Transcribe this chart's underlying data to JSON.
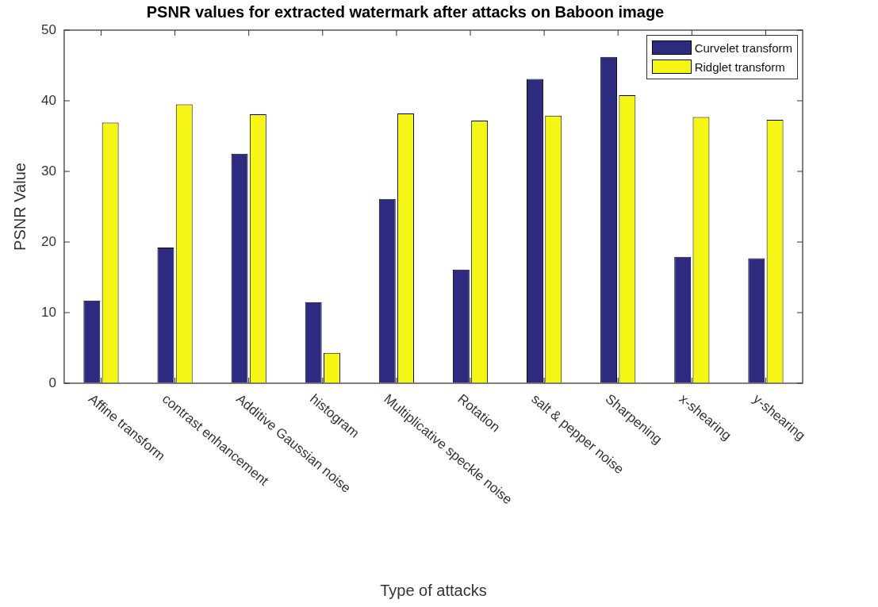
{
  "chart_data": {
    "type": "bar",
    "title": "PSNR values for extracted watermark after attacks on Baboon image",
    "xlabel": "Type of attacks",
    "ylabel": "PSNR Value",
    "categories": [
      "Affine transform",
      "contrast enhancement",
      "Additive Gaussian noise",
      "histogram",
      "Multiplicative speckle noise",
      "Rotation",
      "salt & pepper noise",
      "Sharpening",
      "x-shearing",
      "y-shearing"
    ],
    "series": [
      {
        "name": "Curvelet transform",
        "color": "#2e2a80",
        "values": [
          11.7,
          19.2,
          32.5,
          11.5,
          26.1,
          16.1,
          43.1,
          46.2,
          17.9,
          17.7
        ]
      },
      {
        "name": "Ridglet transform",
        "color": "#f5f516",
        "values": [
          36.9,
          39.5,
          38.1,
          4.3,
          38.2,
          37.2,
          37.9,
          40.8,
          37.7,
          37.3
        ]
      }
    ],
    "ylim": [
      0,
      50
    ],
    "yticks": [
      0,
      10,
      20,
      30,
      40,
      50
    ],
    "grid": false,
    "legend": "top right"
  }
}
